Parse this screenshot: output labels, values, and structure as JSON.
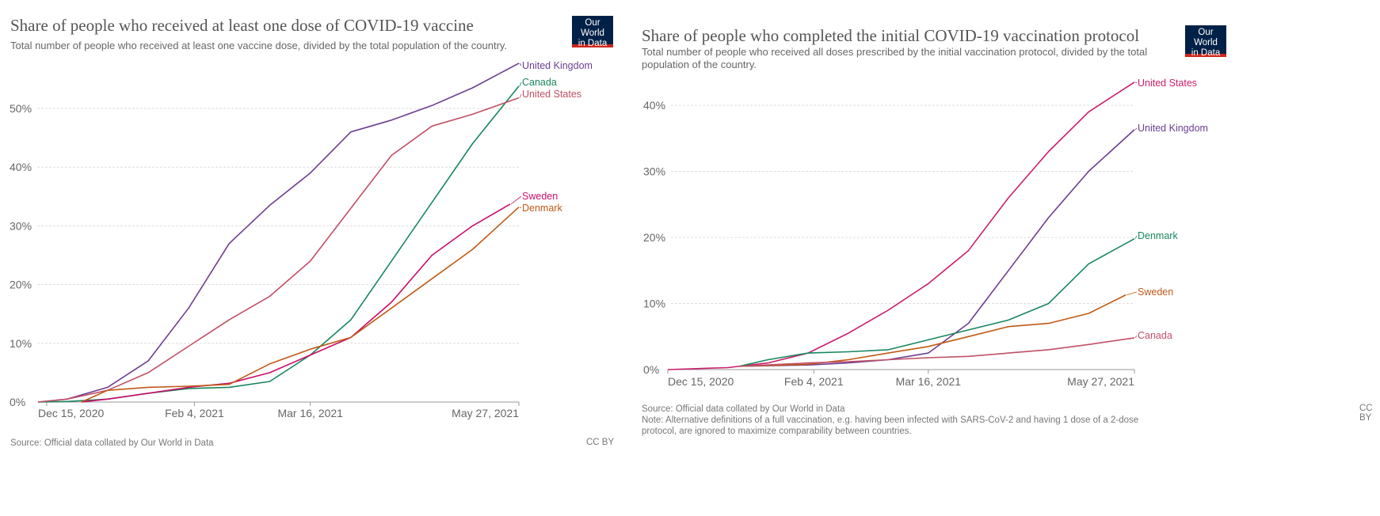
{
  "chart_data": [
    {
      "type": "line",
      "title": "Share of people who received at least one dose of COVID-19 vaccine",
      "subtitle": "Total number of people who received at least one vaccine dose, divided by the total population of the country.",
      "logo": "Our World in Data",
      "source": "Source: Official data collated by Our World in Data",
      "license": "CC BY",
      "xlim": [
        "2020-12-12",
        "2021-05-27"
      ],
      "ylim": [
        0,
        58
      ],
      "y_ticks": [
        0,
        10,
        20,
        30,
        40,
        50
      ],
      "y_tick_labels": [
        "0%",
        "10%",
        "20%",
        "30%",
        "40%",
        "50%"
      ],
      "x_ticks": [
        "2020-12-15",
        "2021-02-04",
        "2021-03-16",
        "2021-05-27"
      ],
      "x_tick_labels": [
        "Dec 15, 2020",
        "Feb 4, 2021",
        "Mar 16, 2021",
        "May 27, 2021"
      ],
      "grid": true,
      "legend": "inline-right",
      "series": [
        {
          "name": "United Kingdom",
          "color": "#6d3e91",
          "points": [
            [
              "2020-12-12",
              0
            ],
            [
              "2020-12-22",
              0.5
            ],
            [
              "2021-01-05",
              2.5
            ],
            [
              "2021-01-19",
              7
            ],
            [
              "2021-02-02",
              16
            ],
            [
              "2021-02-16",
              27
            ],
            [
              "2021-03-02",
              33.5
            ],
            [
              "2021-03-16",
              39
            ],
            [
              "2021-03-30",
              46
            ],
            [
              "2021-04-13",
              48
            ],
            [
              "2021-04-27",
              50.5
            ],
            [
              "2021-05-11",
              53.5
            ],
            [
              "2021-05-27",
              57.7
            ]
          ]
        },
        {
          "name": "Canada",
          "color": "#18875d",
          "points": [
            [
              "2020-12-12",
              0
            ],
            [
              "2020-12-22",
              0.1
            ],
            [
              "2021-01-05",
              0.5
            ],
            [
              "2021-01-19",
              1.5
            ],
            [
              "2021-02-02",
              2.3
            ],
            [
              "2021-02-16",
              2.5
            ],
            [
              "2021-03-02",
              3.5
            ],
            [
              "2021-03-16",
              8
            ],
            [
              "2021-03-30",
              14
            ],
            [
              "2021-04-13",
              24
            ],
            [
              "2021-04-27",
              34
            ],
            [
              "2021-05-11",
              44
            ],
            [
              "2021-05-27",
              53.8
            ]
          ]
        },
        {
          "name": "United States",
          "color": "#c15065",
          "points": [
            [
              "2020-12-12",
              0
            ],
            [
              "2020-12-22",
              0.5
            ],
            [
              "2021-01-05",
              2
            ],
            [
              "2021-01-19",
              5
            ],
            [
              "2021-02-02",
              9.5
            ],
            [
              "2021-02-16",
              14
            ],
            [
              "2021-03-02",
              18
            ],
            [
              "2021-03-16",
              24
            ],
            [
              "2021-03-30",
              33
            ],
            [
              "2021-04-13",
              42
            ],
            [
              "2021-04-27",
              47
            ],
            [
              "2021-05-11",
              49
            ],
            [
              "2021-05-27",
              51.8
            ]
          ]
        },
        {
          "name": "Sweden",
          "color": "#ca0e6b",
          "points": [
            [
              "2020-12-27",
              0
            ],
            [
              "2021-01-05",
              0.5
            ],
            [
              "2021-01-19",
              1.5
            ],
            [
              "2021-02-02",
              2.5
            ],
            [
              "2021-02-16",
              3.2
            ],
            [
              "2021-03-02",
              5
            ],
            [
              "2021-03-16",
              8
            ],
            [
              "2021-03-30",
              11
            ],
            [
              "2021-04-13",
              17
            ],
            [
              "2021-04-27",
              25
            ],
            [
              "2021-05-11",
              30
            ],
            [
              "2021-05-24",
              33.7
            ]
          ]
        },
        {
          "name": "Denmark",
          "color": "#c05917",
          "points": [
            [
              "2020-12-27",
              0
            ],
            [
              "2021-01-05",
              2
            ],
            [
              "2021-01-19",
              2.5
            ],
            [
              "2021-02-02",
              2.7
            ],
            [
              "2021-02-16",
              3
            ],
            [
              "2021-03-02",
              6.5
            ],
            [
              "2021-03-16",
              9
            ],
            [
              "2021-03-30",
              11
            ],
            [
              "2021-04-13",
              16
            ],
            [
              "2021-04-27",
              21
            ],
            [
              "2021-05-11",
              26
            ],
            [
              "2021-05-27",
              33.2
            ]
          ]
        }
      ]
    },
    {
      "type": "line",
      "title": "Share of people who completed the initial COVID-19 vaccination protocol",
      "subtitle": "Total number of people who received all doses prescribed by the initial vaccination protocol, divided by the total population of the country.",
      "logo": "Our World in Data",
      "source": "Source: Official data collated by Our World in Data",
      "note": "Note: Alternative definitions of a full vaccination, e.g. having been infected with SARS-CoV-2 and having 1 dose of a 2-dose protocol, are ignored to maximize comparability between countries.",
      "license": "CC BY",
      "xlim": [
        "2020-12-15",
        "2021-05-27"
      ],
      "ylim": [
        0,
        44
      ],
      "y_ticks": [
        0,
        10,
        20,
        30,
        40
      ],
      "y_tick_labels": [
        "0%",
        "10%",
        "20%",
        "30%",
        "40%"
      ],
      "x_ticks": [
        "2020-12-15",
        "2021-02-04",
        "2021-03-16",
        "2021-05-27"
      ],
      "x_tick_labels": [
        "Dec 15, 2020",
        "Feb 4, 2021",
        "Mar 16, 2021",
        "May 27, 2021"
      ],
      "grid": true,
      "legend": "inline-right",
      "series": [
        {
          "name": "United States",
          "color": "#ca1e6a",
          "points": [
            [
              "2020-12-15",
              0
            ],
            [
              "2021-01-05",
              0.3
            ],
            [
              "2021-01-19",
              1
            ],
            [
              "2021-02-02",
              2.5
            ],
            [
              "2021-02-16",
              5.5
            ],
            [
              "2021-03-02",
              9
            ],
            [
              "2021-03-16",
              13
            ],
            [
              "2021-03-30",
              18
            ],
            [
              "2021-04-13",
              26
            ],
            [
              "2021-04-27",
              33
            ],
            [
              "2021-05-11",
              39
            ],
            [
              "2021-05-27",
              43.5
            ]
          ]
        },
        {
          "name": "United Kingdom",
          "color": "#6d3e91",
          "points": [
            [
              "2021-01-09",
              0.5
            ],
            [
              "2021-02-02",
              0.7
            ],
            [
              "2021-02-16",
              1
            ],
            [
              "2021-03-02",
              1.5
            ],
            [
              "2021-03-16",
              2.5
            ],
            [
              "2021-03-30",
              7
            ],
            [
              "2021-04-13",
              15
            ],
            [
              "2021-04-27",
              23
            ],
            [
              "2021-05-11",
              30
            ],
            [
              "2021-05-27",
              36.3
            ]
          ]
        },
        {
          "name": "Denmark",
          "color": "#18875d",
          "points": [
            [
              "2021-01-09",
              0.5
            ],
            [
              "2021-01-19",
              1.5
            ],
            [
              "2021-02-02",
              2.5
            ],
            [
              "2021-02-16",
              2.7
            ],
            [
              "2021-03-02",
              3
            ],
            [
              "2021-03-16",
              4.5
            ],
            [
              "2021-03-30",
              6
            ],
            [
              "2021-04-13",
              7.5
            ],
            [
              "2021-04-27",
              10
            ],
            [
              "2021-05-11",
              16
            ],
            [
              "2021-05-27",
              19.8
            ]
          ]
        },
        {
          "name": "Sweden",
          "color": "#c05917",
          "points": [
            [
              "2021-01-09",
              0.5
            ],
            [
              "2021-02-02",
              0.8
            ],
            [
              "2021-02-16",
              1.5
            ],
            [
              "2021-03-02",
              2.5
            ],
            [
              "2021-03-16",
              3.5
            ],
            [
              "2021-03-30",
              5
            ],
            [
              "2021-04-13",
              6.5
            ],
            [
              "2021-04-27",
              7
            ],
            [
              "2021-05-11",
              8.5
            ],
            [
              "2021-05-24",
              11.3
            ]
          ]
        },
        {
          "name": "Canada",
          "color": "#c15065",
          "points": [
            [
              "2021-01-09",
              0.5
            ],
            [
              "2021-02-02",
              1
            ],
            [
              "2021-02-16",
              1.2
            ],
            [
              "2021-03-02",
              1.5
            ],
            [
              "2021-03-16",
              1.8
            ],
            [
              "2021-03-30",
              2
            ],
            [
              "2021-04-13",
              2.5
            ],
            [
              "2021-04-27",
              3
            ],
            [
              "2021-05-11",
              3.8
            ],
            [
              "2021-05-27",
              4.8
            ]
          ]
        }
      ]
    }
  ]
}
